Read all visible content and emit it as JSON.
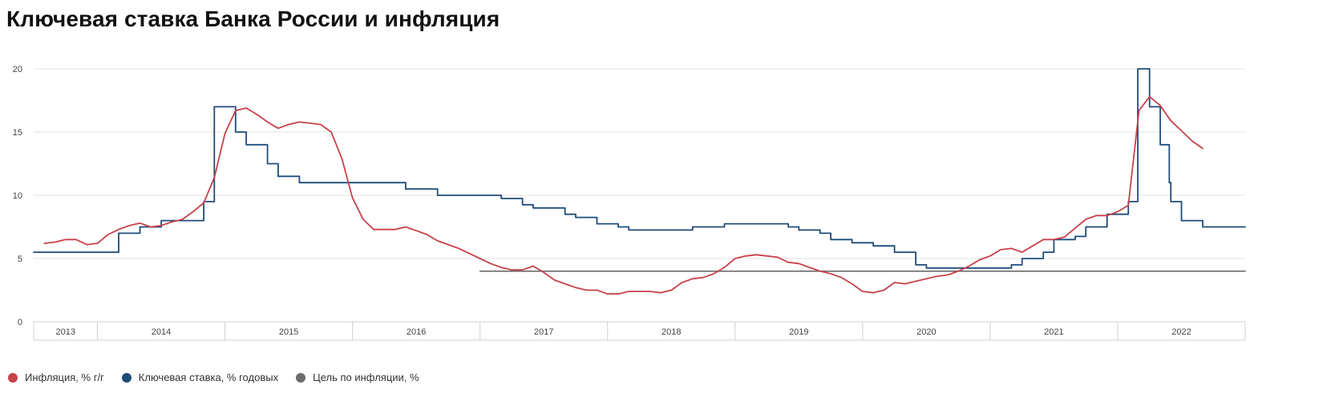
{
  "page": {
    "title": "Ключевая ставка Банка России и инфляция"
  },
  "chart_data": {
    "type": "line",
    "title": "Ключевая ставка Банка России и инфляция",
    "xlabel": "",
    "ylabel": "",
    "xlim": [
      "2013-07",
      "2023-01"
    ],
    "ylim": [
      0,
      20
    ],
    "y_ticks": [
      "0",
      "5",
      "10",
      "15",
      "20"
    ],
    "x_categories": [
      {
        "label": "2013",
        "from": "2013-07",
        "to": "2014-01"
      },
      {
        "label": "2014",
        "from": "2014-01",
        "to": "2015-01"
      },
      {
        "label": "2015",
        "from": "2015-01",
        "to": "2016-01"
      },
      {
        "label": "2016",
        "from": "2016-01",
        "to": "2017-01"
      },
      {
        "label": "2017",
        "from": "2017-01",
        "to": "2018-01"
      },
      {
        "label": "2018",
        "from": "2018-01",
        "to": "2019-01"
      },
      {
        "label": "2019",
        "from": "2019-01",
        "to": "2020-01"
      },
      {
        "label": "2020",
        "from": "2020-01",
        "to": "2021-01"
      },
      {
        "label": "2021",
        "from": "2021-01",
        "to": "2022-01"
      },
      {
        "label": "2022",
        "from": "2022-01",
        "to": "2023-01"
      }
    ],
    "grid": true,
    "legend_position": "bottom-left",
    "series": [
      {
        "name": "Инфляция, % г/г",
        "color": "#c8414b",
        "style": "line",
        "points": [
          [
            "2013-08",
            6.2
          ],
          [
            "2013-09",
            6.3
          ],
          [
            "2013-10",
            6.5
          ],
          [
            "2013-11",
            6.5
          ],
          [
            "2013-12",
            6.1
          ],
          [
            "2014-01",
            6.2
          ],
          [
            "2014-02",
            6.9
          ],
          [
            "2014-03",
            7.3
          ],
          [
            "2014-04",
            7.6
          ],
          [
            "2014-05",
            7.8
          ],
          [
            "2014-06",
            7.5
          ],
          [
            "2014-07",
            7.6
          ],
          [
            "2014-08",
            7.9
          ],
          [
            "2014-09",
            8.1
          ],
          [
            "2014-10",
            8.7
          ],
          [
            "2014-11",
            9.4
          ],
          [
            "2014-12",
            11.4
          ],
          [
            "2015-01",
            14.9
          ],
          [
            "2015-02",
            16.7
          ],
          [
            "2015-03",
            16.9
          ],
          [
            "2015-04",
            16.4
          ],
          [
            "2015-05",
            15.8
          ],
          [
            "2015-06",
            15.3
          ],
          [
            "2015-07",
            15.6
          ],
          [
            "2015-08",
            15.8
          ],
          [
            "2015-09",
            15.7
          ],
          [
            "2015-10",
            15.6
          ],
          [
            "2015-11",
            15.0
          ],
          [
            "2015-12",
            12.9
          ],
          [
            "2016-01",
            9.8
          ],
          [
            "2016-02",
            8.1
          ],
          [
            "2016-03",
            7.3
          ],
          [
            "2016-04",
            7.3
          ],
          [
            "2016-05",
            7.3
          ],
          [
            "2016-06",
            7.5
          ],
          [
            "2016-07",
            7.2
          ],
          [
            "2016-08",
            6.9
          ],
          [
            "2016-09",
            6.4
          ],
          [
            "2016-10",
            6.1
          ],
          [
            "2016-11",
            5.8
          ],
          [
            "2016-12",
            5.4
          ],
          [
            "2017-01",
            5.0
          ],
          [
            "2017-02",
            4.6
          ],
          [
            "2017-03",
            4.3
          ],
          [
            "2017-04",
            4.1
          ],
          [
            "2017-05",
            4.1
          ],
          [
            "2017-06",
            4.4
          ],
          [
            "2017-07",
            3.9
          ],
          [
            "2017-08",
            3.3
          ],
          [
            "2017-09",
            3.0
          ],
          [
            "2017-10",
            2.7
          ],
          [
            "2017-11",
            2.5
          ],
          [
            "2017-12",
            2.5
          ],
          [
            "2018-01",
            2.2
          ],
          [
            "2018-02",
            2.2
          ],
          [
            "2018-03",
            2.4
          ],
          [
            "2018-04",
            2.4
          ],
          [
            "2018-05",
            2.4
          ],
          [
            "2018-06",
            2.3
          ],
          [
            "2018-07",
            2.5
          ],
          [
            "2018-08",
            3.1
          ],
          [
            "2018-09",
            3.4
          ],
          [
            "2018-10",
            3.5
          ],
          [
            "2018-11",
            3.8
          ],
          [
            "2018-12",
            4.3
          ],
          [
            "2019-01",
            5.0
          ],
          [
            "2019-02",
            5.2
          ],
          [
            "2019-03",
            5.3
          ],
          [
            "2019-04",
            5.2
          ],
          [
            "2019-05",
            5.1
          ],
          [
            "2019-06",
            4.7
          ],
          [
            "2019-07",
            4.6
          ],
          [
            "2019-08",
            4.3
          ],
          [
            "2019-09",
            4.0
          ],
          [
            "2019-10",
            3.8
          ],
          [
            "2019-11",
            3.5
          ],
          [
            "2019-12",
            3.0
          ],
          [
            "2020-01",
            2.4
          ],
          [
            "2020-02",
            2.3
          ],
          [
            "2020-03",
            2.5
          ],
          [
            "2020-04",
            3.1
          ],
          [
            "2020-05",
            3.0
          ],
          [
            "2020-06",
            3.2
          ],
          [
            "2020-07",
            3.4
          ],
          [
            "2020-08",
            3.6
          ],
          [
            "2020-09",
            3.7
          ],
          [
            "2020-10",
            4.0
          ],
          [
            "2020-11",
            4.4
          ],
          [
            "2020-12",
            4.9
          ],
          [
            "2021-01",
            5.2
          ],
          [
            "2021-02",
            5.7
          ],
          [
            "2021-03",
            5.8
          ],
          [
            "2021-04",
            5.5
          ],
          [
            "2021-05",
            6.0
          ],
          [
            "2021-06",
            6.5
          ],
          [
            "2021-07",
            6.5
          ],
          [
            "2021-08",
            6.7
          ],
          [
            "2021-09",
            7.4
          ],
          [
            "2021-10",
            8.1
          ],
          [
            "2021-11",
            8.4
          ],
          [
            "2021-12",
            8.4
          ],
          [
            "2022-01",
            8.7
          ],
          [
            "2022-02",
            9.2
          ],
          [
            "2022-03",
            16.7
          ],
          [
            "2022-04",
            17.8
          ],
          [
            "2022-05",
            17.1
          ],
          [
            "2022-06",
            15.9
          ],
          [
            "2022-07",
            15.1
          ],
          [
            "2022-08",
            14.3
          ],
          [
            "2022-09",
            13.7
          ]
        ]
      },
      {
        "name": "Ключевая ставка, % годовых",
        "color": "#1e4b7a",
        "style": "step",
        "points": [
          [
            "2013-07",
            5.5
          ],
          [
            "2014-03",
            7.0
          ],
          [
            "2014-05",
            7.5
          ],
          [
            "2014-07",
            8.0
          ],
          [
            "2014-11",
            9.5
          ],
          [
            "2014-12",
            17.0
          ],
          [
            "2015-02",
            15.0
          ],
          [
            "2015-03",
            14.0
          ],
          [
            "2015-05",
            12.5
          ],
          [
            "2015-06",
            11.5
          ],
          [
            "2015-08",
            11.0
          ],
          [
            "2016-06",
            10.5
          ],
          [
            "2016-09",
            10.0
          ],
          [
            "2017-03",
            9.75
          ],
          [
            "2017-05",
            9.25
          ],
          [
            "2017-06",
            9.0
          ],
          [
            "2017-09",
            8.5
          ],
          [
            "2017-10",
            8.25
          ],
          [
            "2017-12",
            7.75
          ],
          [
            "2018-02",
            7.5
          ],
          [
            "2018-03",
            7.25
          ],
          [
            "2018-09",
            7.5
          ],
          [
            "2018-12",
            7.75
          ],
          [
            "2019-06",
            7.5
          ],
          [
            "2019-07",
            7.25
          ],
          [
            "2019-09",
            7.0
          ],
          [
            "2019-10",
            6.5
          ],
          [
            "2019-12",
            6.25
          ],
          [
            "2020-02",
            6.0
          ],
          [
            "2020-04",
            5.5
          ],
          [
            "2020-06",
            4.5
          ],
          [
            "2020-07",
            4.25
          ],
          [
            "2021-03",
            4.5
          ],
          [
            "2021-04",
            5.0
          ],
          [
            "2021-06",
            5.5
          ],
          [
            "2021-07",
            6.5
          ],
          [
            "2021-09",
            6.75
          ],
          [
            "2021-10",
            7.5
          ],
          [
            "2021-12",
            8.5
          ],
          [
            "2022-02",
            9.5
          ],
          [
            "2022-02-28",
            20.0
          ],
          [
            "2022-04",
            17.0
          ],
          [
            "2022-05",
            14.0
          ],
          [
            "2022-05-27",
            11.0
          ],
          [
            "2022-06",
            9.5
          ],
          [
            "2022-07",
            8.0
          ],
          [
            "2022-09",
            7.5
          ],
          [
            "2023-01",
            7.5
          ]
        ]
      },
      {
        "name": "Цель по инфляции, %",
        "color": "#6b6b6b",
        "style": "line",
        "points": [
          [
            "2017-01",
            4.0
          ],
          [
            "2023-01",
            4.0
          ]
        ]
      }
    ]
  }
}
